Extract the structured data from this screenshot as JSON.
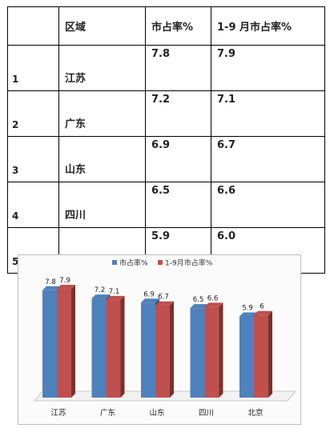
{
  "table": {
    "headers": [
      "",
      "区域",
      "市占率%",
      "1-9 月市占率%"
    ],
    "rows": [
      {
        "rank": "1",
        "region": "江苏",
        "share": "7.8",
        "share_ytd": "7.9"
      },
      {
        "rank": "2",
        "region": "广东",
        "share": "7.2",
        "share_ytd": "7.1"
      },
      {
        "rank": "3",
        "region": "山东",
        "share": "6.9",
        "share_ytd": "6.7"
      },
      {
        "rank": "4",
        "region": "四川",
        "share": "6.5",
        "share_ytd": "6.6"
      },
      {
        "rank": "5",
        "region": "北京",
        "share": "5.9",
        "share_ytd": "6.0"
      }
    ]
  },
  "chart_data": {
    "type": "bar",
    "categories": [
      "江苏",
      "广东",
      "山东",
      "四川",
      "北京"
    ],
    "series": [
      {
        "name": "市占率%",
        "values": [
          7.8,
          7.2,
          6.9,
          6.5,
          5.9
        ],
        "labels": [
          "7.8",
          "7.2",
          "6.9",
          "6.5",
          "5.9"
        ],
        "color": "#4f81bd"
      },
      {
        "name": "1-9月市占率%",
        "values": [
          7.9,
          7.1,
          6.7,
          6.6,
          6.0
        ],
        "labels": [
          "7.9",
          "7.1",
          "6.7",
          "6.6",
          "6"
        ],
        "color": "#c0504d"
      }
    ],
    "ylim": [
      0,
      8.6
    ],
    "legend": "top-center",
    "grid": false,
    "style": "3d"
  }
}
